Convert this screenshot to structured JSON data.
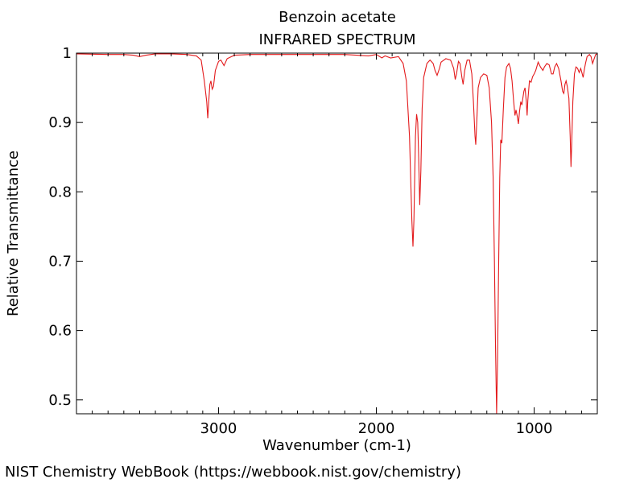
{
  "chart_data": {
    "type": "line",
    "title": "Benzoin acetate",
    "subtitle": "INFRARED SPECTRUM",
    "xlabel": "Wavenumber (cm-1)",
    "ylabel": "Relative Transmittance",
    "xlim": [
      3900,
      600
    ],
    "ylim": [
      0.48,
      1.0
    ],
    "x_ticks": [
      3000,
      2000,
      1000
    ],
    "y_ticks": [
      0.5,
      0.6,
      0.7,
      0.8,
      0.9,
      1
    ],
    "x_tick_labels": [
      "3000",
      "2000",
      "1000"
    ],
    "y_tick_labels": [
      "0.5",
      "0.6",
      "0.7",
      "0.8",
      "0.9",
      "1"
    ],
    "series": [
      {
        "color": "#e31a1c",
        "points": [
          [
            3900,
            0.999
          ],
          [
            3700,
            0.998
          ],
          [
            3600,
            0.998
          ],
          [
            3540,
            0.997
          ],
          [
            3500,
            0.995
          ],
          [
            3460,
            0.997
          ],
          [
            3400,
            0.999
          ],
          [
            3300,
            0.999
          ],
          [
            3200,
            0.998
          ],
          [
            3140,
            0.996
          ],
          [
            3110,
            0.99
          ],
          [
            3090,
            0.96
          ],
          [
            3075,
            0.93
          ],
          [
            3068,
            0.906
          ],
          [
            3062,
            0.93
          ],
          [
            3055,
            0.955
          ],
          [
            3048,
            0.96
          ],
          [
            3040,
            0.948
          ],
          [
            3032,
            0.952
          ],
          [
            3020,
            0.975
          ],
          [
            3000,
            0.988
          ],
          [
            2985,
            0.99
          ],
          [
            2965,
            0.982
          ],
          [
            2945,
            0.992
          ],
          [
            2900,
            0.997
          ],
          [
            2800,
            0.998
          ],
          [
            2600,
            0.998
          ],
          [
            2400,
            0.998
          ],
          [
            2200,
            0.998
          ],
          [
            2050,
            0.996
          ],
          [
            2000,
            0.998
          ],
          [
            1965,
            0.993
          ],
          [
            1945,
            0.996
          ],
          [
            1910,
            0.993
          ],
          [
            1860,
            0.995
          ],
          [
            1830,
            0.985
          ],
          [
            1810,
            0.96
          ],
          [
            1790,
            0.88
          ],
          [
            1775,
            0.76
          ],
          [
            1768,
            0.721
          ],
          [
            1762,
            0.76
          ],
          [
            1752,
            0.88
          ],
          [
            1745,
            0.912
          ],
          [
            1738,
            0.9
          ],
          [
            1732,
            0.85
          ],
          [
            1725,
            0.781
          ],
          [
            1718,
            0.83
          ],
          [
            1710,
            0.92
          ],
          [
            1700,
            0.965
          ],
          [
            1680,
            0.985
          ],
          [
            1660,
            0.99
          ],
          [
            1640,
            0.985
          ],
          [
            1628,
            0.975
          ],
          [
            1615,
            0.968
          ],
          [
            1600,
            0.978
          ],
          [
            1590,
            0.987
          ],
          [
            1560,
            0.992
          ],
          [
            1530,
            0.99
          ],
          [
            1510,
            0.978
          ],
          [
            1500,
            0.962
          ],
          [
            1492,
            0.97
          ],
          [
            1480,
            0.988
          ],
          [
            1470,
            0.985
          ],
          [
            1458,
            0.965
          ],
          [
            1450,
            0.955
          ],
          [
            1440,
            0.975
          ],
          [
            1425,
            0.99
          ],
          [
            1410,
            0.99
          ],
          [
            1395,
            0.97
          ],
          [
            1385,
            0.93
          ],
          [
            1375,
            0.88
          ],
          [
            1370,
            0.868
          ],
          [
            1364,
            0.9
          ],
          [
            1355,
            0.95
          ],
          [
            1340,
            0.965
          ],
          [
            1320,
            0.97
          ],
          [
            1300,
            0.968
          ],
          [
            1285,
            0.95
          ],
          [
            1270,
            0.9
          ],
          [
            1260,
            0.82
          ],
          [
            1252,
            0.7
          ],
          [
            1245,
            0.58
          ],
          [
            1238,
            0.48
          ],
          [
            1232,
            0.56
          ],
          [
            1225,
            0.7
          ],
          [
            1218,
            0.82
          ],
          [
            1212,
            0.875
          ],
          [
            1205,
            0.87
          ],
          [
            1195,
            0.92
          ],
          [
            1185,
            0.965
          ],
          [
            1175,
            0.98
          ],
          [
            1160,
            0.985
          ],
          [
            1150,
            0.978
          ],
          [
            1140,
            0.96
          ],
          [
            1130,
            0.93
          ],
          [
            1122,
            0.91
          ],
          [
            1115,
            0.918
          ],
          [
            1108,
            0.91
          ],
          [
            1100,
            0.898
          ],
          [
            1093,
            0.915
          ],
          [
            1085,
            0.93
          ],
          [
            1078,
            0.925
          ],
          [
            1072,
            0.935
          ],
          [
            1065,
            0.945
          ],
          [
            1058,
            0.95
          ],
          [
            1050,
            0.93
          ],
          [
            1045,
            0.91
          ],
          [
            1040,
            0.932
          ],
          [
            1030,
            0.96
          ],
          [
            1020,
            0.958
          ],
          [
            1010,
            0.966
          ],
          [
            1000,
            0.97
          ],
          [
            990,
            0.975
          ],
          [
            975,
            0.987
          ],
          [
            960,
            0.98
          ],
          [
            945,
            0.975
          ],
          [
            935,
            0.98
          ],
          [
            920,
            0.985
          ],
          [
            905,
            0.983
          ],
          [
            890,
            0.97
          ],
          [
            880,
            0.97
          ],
          [
            870,
            0.98
          ],
          [
            858,
            0.985
          ],
          [
            845,
            0.978
          ],
          [
            830,
            0.96
          ],
          [
            820,
            0.945
          ],
          [
            812,
            0.942
          ],
          [
            805,
            0.955
          ],
          [
            798,
            0.96
          ],
          [
            790,
            0.952
          ],
          [
            780,
            0.935
          ],
          [
            772,
            0.88
          ],
          [
            767,
            0.836
          ],
          [
            762,
            0.87
          ],
          [
            755,
            0.93
          ],
          [
            745,
            0.97
          ],
          [
            735,
            0.98
          ],
          [
            725,
            0.978
          ],
          [
            715,
            0.972
          ],
          [
            705,
            0.978
          ],
          [
            698,
            0.972
          ],
          [
            690,
            0.965
          ],
          [
            683,
            0.975
          ],
          [
            675,
            0.985
          ],
          [
            665,
            0.995
          ],
          [
            650,
            0.998
          ],
          [
            640,
            0.995
          ],
          [
            630,
            0.985
          ],
          [
            620,
            0.992
          ],
          [
            610,
            0.998
          ],
          [
            600,
            0.999
          ]
        ]
      }
    ]
  },
  "footer": "NIST Chemistry WebBook (https://webbook.nist.gov/chemistry)"
}
